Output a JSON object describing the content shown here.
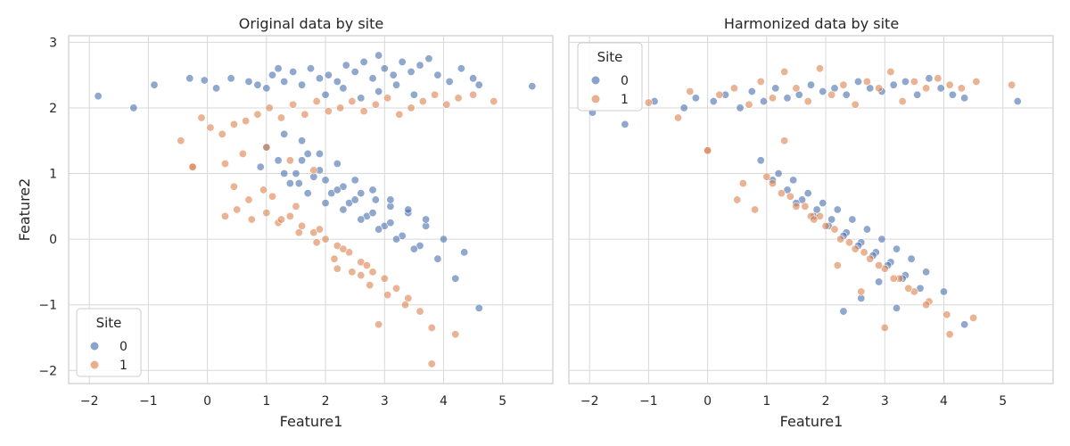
{
  "chart_data": [
    {
      "type": "scatter",
      "title": "Original data by site",
      "xlabel": "Feature1",
      "ylabel": "Feature2",
      "xlim": [
        -2.35,
        5.85
      ],
      "ylim": [
        -2.2,
        3.1
      ],
      "xticks": [
        "−2",
        "−1",
        "0",
        "1",
        "2",
        "3",
        "4",
        "5"
      ],
      "xtick_values": [
        -2,
        -1,
        0,
        1,
        2,
        3,
        4,
        5
      ],
      "yticks": [
        "−2",
        "−1",
        "0",
        "1",
        "2",
        "3"
      ],
      "ytick_values": [
        -2,
        -1,
        0,
        1,
        2,
        3
      ],
      "grid": true,
      "legend": {
        "title": "Site",
        "placement": "lower-left",
        "entries": [
          "0",
          "1"
        ]
      },
      "series": [
        {
          "name": "0",
          "color": "#4c72b0",
          "x": [
            -1.85,
            -1.25,
            -0.9,
            -0.3,
            -0.05,
            0.15,
            0.4,
            0.7,
            0.85,
            1.0,
            1.1,
            1.2,
            1.3,
            1.45,
            1.6,
            1.75,
            1.9,
            2.05,
            2.2,
            2.35,
            2.5,
            2.65,
            2.8,
            2.9,
            3.0,
            3.15,
            3.3,
            3.45,
            3.6,
            3.75,
            3.9,
            4.1,
            4.3,
            4.5,
            4.6,
            5.5,
            0.9,
            1.2,
            1.5,
            1.7,
            2.0,
            2.3,
            2.6,
            2.85,
            3.1,
            3.4,
            3.7,
            4.0,
            4.35,
            1.0,
            1.3,
            1.55,
            1.8,
            2.1,
            2.4,
            2.7,
            3.0,
            3.3,
            3.6,
            3.9,
            4.2,
            4.6,
            1.6,
            1.9,
            2.2,
            2.5,
            2.8,
            3.1,
            1.4,
            1.7,
            2.0,
            2.3,
            2.6,
            2.9,
            3.2,
            3.5,
            1.3,
            1.6,
            1.9,
            2.2,
            2.5,
            2.8,
            3.1,
            3.4,
            3.7,
            2.0,
            2.3,
            2.6,
            2.9,
            3.2,
            3.5
          ],
          "y": [
            2.18,
            2.0,
            2.35,
            2.45,
            2.42,
            2.3,
            2.45,
            2.4,
            2.35,
            2.3,
            2.5,
            2.6,
            2.4,
            2.55,
            2.35,
            2.6,
            2.45,
            2.5,
            2.4,
            2.65,
            2.55,
            2.7,
            2.45,
            2.8,
            2.6,
            2.5,
            2.7,
            2.55,
            2.65,
            2.75,
            2.5,
            2.4,
            2.6,
            2.45,
            2.35,
            2.33,
            1.1,
            1.2,
            1.0,
            1.3,
            0.9,
            0.8,
            0.7,
            0.6,
            0.5,
            0.4,
            0.2,
            0.0,
            -0.2,
            1.4,
            1.0,
            0.85,
            0.95,
            0.7,
            0.55,
            0.35,
            0.2,
            0.05,
            -0.1,
            -0.3,
            -0.6,
            -1.05,
            1.2,
            1.05,
            0.75,
            0.6,
            0.4,
            0.25,
            0.85,
            0.7,
            0.55,
            0.45,
            0.3,
            0.15,
            0.0,
            -0.15,
            1.6,
            1.5,
            1.3,
            1.15,
            0.9,
            0.75,
            0.6,
            0.45,
            0.3,
            2.2,
            2.3,
            2.15,
            2.25,
            2.35,
            2.2
          ]
        },
        {
          "name": "1",
          "color": "#dd8452",
          "x": [
            -0.45,
            -0.25,
            -0.1,
            0.05,
            0.25,
            0.45,
            0.65,
            0.85,
            1.05,
            1.25,
            1.45,
            1.65,
            1.85,
            2.05,
            2.25,
            2.45,
            2.65,
            2.85,
            3.05,
            3.25,
            3.45,
            3.65,
            3.85,
            4.05,
            4.25,
            4.5,
            4.85,
            0.3,
            0.5,
            0.75,
            1.0,
            1.2,
            1.4,
            1.6,
            1.8,
            2.0,
            2.2,
            2.4,
            2.6,
            2.8,
            3.0,
            3.2,
            3.4,
            3.6,
            3.8,
            4.2,
            0.45,
            0.7,
            0.95,
            1.25,
            1.55,
            1.85,
            2.15,
            2.45,
            2.75,
            3.05,
            3.35,
            3.8,
            -0.25,
            0.3,
            0.6,
            1.0,
            1.4,
            1.8,
            2.2,
            2.6,
            2.9,
            1.1,
            1.5,
            1.9,
            2.3,
            2.7
          ],
          "y": [
            1.5,
            1.1,
            1.85,
            1.7,
            1.6,
            1.75,
            1.8,
            1.9,
            2.0,
            1.85,
            2.05,
            1.9,
            2.1,
            1.95,
            2.0,
            2.1,
            1.95,
            2.05,
            2.15,
            1.9,
            2.0,
            2.1,
            2.2,
            2.05,
            2.15,
            2.2,
            2.1,
            0.35,
            0.45,
            0.3,
            0.4,
            0.25,
            0.35,
            0.2,
            0.1,
            0.0,
            -0.1,
            -0.2,
            -0.35,
            -0.5,
            -0.6,
            -0.75,
            -0.9,
            -1.1,
            -1.35,
            -1.45,
            0.8,
            0.6,
            0.75,
            0.3,
            0.1,
            -0.05,
            -0.3,
            -0.5,
            -0.7,
            -0.85,
            -1.0,
            -1.9,
            1.1,
            1.15,
            1.3,
            1.4,
            1.2,
            1.05,
            -0.45,
            -0.55,
            -1.3,
            0.65,
            0.5,
            0.15,
            -0.15,
            -0.4
          ]
        }
      ]
    },
    {
      "type": "scatter",
      "title": "Harmonized data by site",
      "xlabel": "Feature1",
      "ylabel": "",
      "xlim": [
        -2.35,
        5.85
      ],
      "ylim": [
        -2.2,
        3.1
      ],
      "xticks": [
        "−2",
        "−1",
        "0",
        "1",
        "2",
        "3",
        "4",
        "5"
      ],
      "xtick_values": [
        -2,
        -1,
        0,
        1,
        2,
        3,
        4,
        5
      ],
      "yticks": [],
      "ytick_values": [
        -2,
        -1,
        0,
        1,
        2,
        3
      ],
      "grid": true,
      "legend": {
        "title": "Site",
        "placement": "upper-left",
        "entries": [
          "0",
          "1"
        ]
      },
      "series": [
        {
          "name": "0",
          "color": "#4c72b0",
          "x": [
            -1.95,
            -1.4,
            -0.9,
            -0.4,
            -0.2,
            0.1,
            0.3,
            0.55,
            0.75,
            0.95,
            1.15,
            1.35,
            1.55,
            1.75,
            1.95,
            2.15,
            2.35,
            2.55,
            2.75,
            2.95,
            3.15,
            3.35,
            3.55,
            3.75,
            3.95,
            4.15,
            4.35,
            5.25,
            0.9,
            1.2,
            1.45,
            1.7,
            1.95,
            2.2,
            2.45,
            2.7,
            2.95,
            3.2,
            3.45,
            3.7,
            4.0,
            4.35,
            1.1,
            1.35,
            1.6,
            1.85,
            2.1,
            2.35,
            2.6,
            2.85,
            3.1,
            3.35,
            3.6,
            2.3,
            2.6,
            2.9,
            3.2,
            1.5,
            1.8,
            2.05,
            2.3,
            2.55,
            2.8,
            3.05,
            3.3
          ],
          "y": [
            1.93,
            1.75,
            2.1,
            2.0,
            2.15,
            2.1,
            2.2,
            2.0,
            2.25,
            2.1,
            2.3,
            2.15,
            2.2,
            2.35,
            2.25,
            2.3,
            2.2,
            2.4,
            2.3,
            2.25,
            2.35,
            2.4,
            2.2,
            2.45,
            2.3,
            2.2,
            2.15,
            2.1,
            1.2,
            1.0,
            0.9,
            0.7,
            0.55,
            0.45,
            0.3,
            0.15,
            0.0,
            -0.15,
            -0.3,
            -0.5,
            -0.8,
            -1.3,
            0.9,
            0.75,
            0.6,
            0.45,
            0.3,
            0.1,
            -0.05,
            -0.2,
            -0.35,
            -0.55,
            -0.75,
            -1.1,
            -0.9,
            -0.65,
            -1.05,
            0.55,
            0.35,
            0.2,
            0.05,
            -0.1,
            -0.25,
            -0.4,
            -0.6
          ]
        },
        {
          "name": "1",
          "color": "#dd8452",
          "x": [
            -1.0,
            -0.5,
            -0.3,
            0.0,
            0.2,
            0.45,
            0.7,
            0.9,
            1.1,
            1.3,
            1.5,
            1.7,
            1.9,
            2.1,
            2.3,
            2.5,
            2.7,
            2.9,
            3.1,
            3.3,
            3.5,
            3.7,
            3.9,
            4.1,
            4.3,
            4.55,
            5.15,
            0.5,
            0.8,
            1.0,
            1.25,
            1.5,
            1.75,
            2.0,
            2.25,
            2.5,
            2.75,
            3.0,
            3.25,
            3.5,
            3.75,
            4.05,
            4.5,
            1.1,
            1.4,
            1.65,
            1.9,
            2.15,
            2.4,
            2.65,
            2.9,
            3.15,
            3.4,
            3.7,
            4.1,
            0.0,
            0.6,
            1.3,
            1.8,
            2.2,
            2.6,
            3.0
          ],
          "y": [
            2.08,
            1.85,
            2.25,
            1.35,
            2.2,
            2.3,
            2.05,
            2.4,
            2.15,
            2.55,
            2.3,
            2.1,
            2.6,
            2.2,
            2.35,
            2.05,
            2.4,
            2.3,
            2.55,
            2.1,
            2.4,
            2.3,
            2.45,
            2.35,
            2.3,
            2.4,
            2.35,
            0.6,
            0.45,
            0.95,
            0.7,
            0.5,
            0.35,
            0.2,
            0.0,
            -0.15,
            -0.3,
            -0.45,
            -0.6,
            -0.8,
            -0.95,
            -1.15,
            -1.2,
            0.85,
            0.65,
            0.5,
            0.35,
            0.15,
            -0.05,
            -0.2,
            -0.4,
            -0.6,
            -0.75,
            -1.0,
            -1.45,
            1.35,
            0.85,
            1.5,
            0.3,
            -0.4,
            -0.8,
            -1.35
          ]
        }
      ]
    }
  ]
}
